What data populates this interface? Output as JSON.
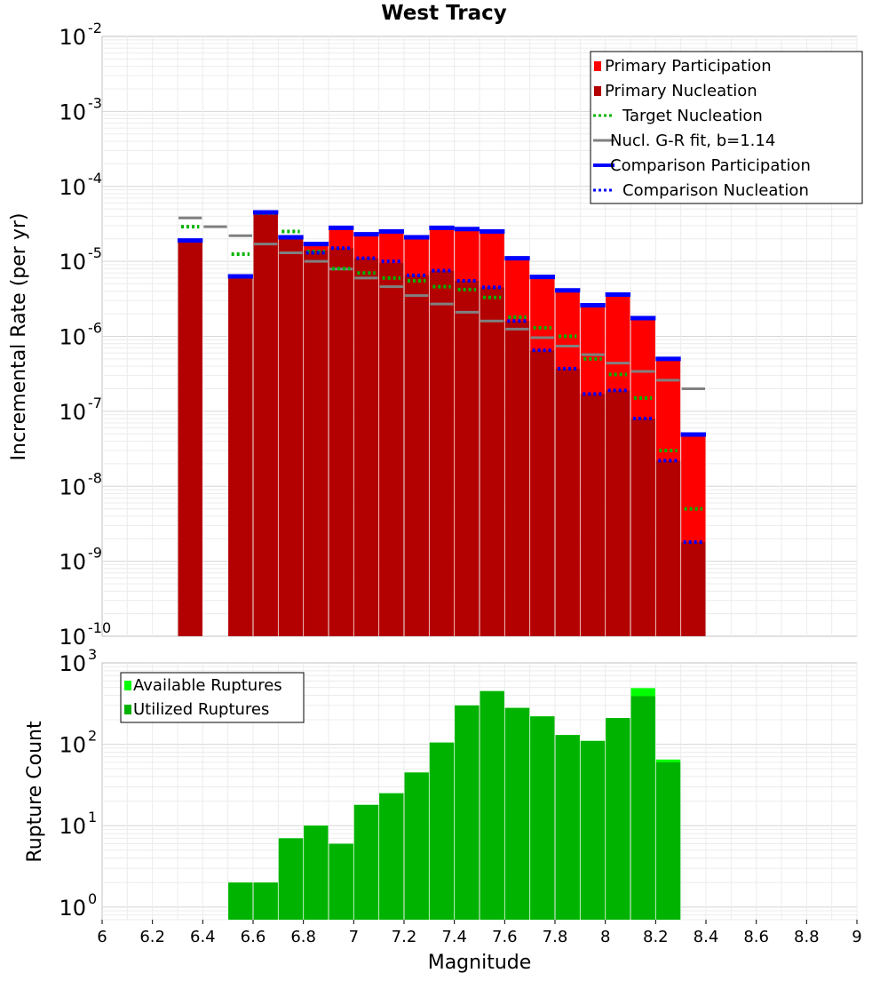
{
  "chart_data": [
    {
      "type": "bar",
      "title": "West Tracy",
      "xlabel": "",
      "ylabel": "Incremental Rate (per yr)",
      "yscale": "log",
      "xlim": [
        6,
        9
      ],
      "ylim": [
        1e-10,
        0.01
      ],
      "y_tick_labels": [
        {
          "base": "10",
          "exp": "-10"
        },
        {
          "base": "10",
          "exp": "-9"
        },
        {
          "base": "10",
          "exp": "-8"
        },
        {
          "base": "10",
          "exp": "-7"
        },
        {
          "base": "10",
          "exp": "-6"
        },
        {
          "base": "10",
          "exp": "-5"
        },
        {
          "base": "10",
          "exp": "-4"
        },
        {
          "base": "10",
          "exp": "-3"
        },
        {
          "base": "10",
          "exp": "-2"
        }
      ],
      "grid": true,
      "legend": "top-right",
      "legend_entries": [
        {
          "label": "Primary Participation",
          "style": "box",
          "color": "#ff0000"
        },
        {
          "label": "Primary Nucleation",
          "style": "box",
          "color": "#b30000"
        },
        {
          "label": "Target Nucleation",
          "style": "dotted",
          "color": "#00b300"
        },
        {
          "label": "Nucl. G-R fit, b=1.14",
          "style": "solid",
          "color": "#808080"
        },
        {
          "label": "Comparison Participation",
          "style": "solid",
          "color": "#0000ff"
        },
        {
          "label": "Comparison Nucleation",
          "style": "dotted",
          "color": "#0000ff"
        }
      ],
      "colors": {
        "participation": "#ff0000",
        "nucleation": "#b30000",
        "target": "#00b300",
        "gr_fit": "#808080",
        "comparison": "#0000ff"
      },
      "bin_width": 0.1,
      "x": [
        6.35,
        6.45,
        6.55,
        6.65,
        6.75,
        6.85,
        6.95,
        7.05,
        7.15,
        7.25,
        7.35,
        7.45,
        7.55,
        7.65,
        7.75,
        7.85,
        7.95,
        8.05,
        8.15,
        8.25,
        8.35
      ],
      "series": [
        {
          "name": "Primary Participation",
          "values": [
            1.8e-05,
            null,
            6e-06,
            4.2e-05,
            2e-05,
            1.6e-05,
            2.7e-05,
            2.2e-05,
            2.4e-05,
            2e-05,
            2.7e-05,
            2.6e-05,
            2.4e-05,
            1.05e-05,
            6e-06,
            3.9e-06,
            2.5e-06,
            3.4e-06,
            1.7e-06,
            4.8e-07,
            4.7e-08
          ]
        },
        {
          "name": "Primary Nucleation",
          "values": [
            1.8e-05,
            null,
            6e-06,
            4.2e-05,
            2e-05,
            1.4e-05,
            1.5e-05,
            1.1e-05,
            9.5e-06,
            6.5e-06,
            7.5e-06,
            5.5e-06,
            4.5e-06,
            1.6e-06,
            6.5e-07,
            3.7e-07,
            1.7e-07,
            1.9e-07,
            8e-08,
            2.2e-08,
            1.8e-09
          ]
        },
        {
          "name": "Target Nucleation",
          "values": [
            2.9e-05,
            null,
            1.25e-05,
            4.4e-05,
            2.5e-05,
            1.35e-05,
            8e-06,
            7e-06,
            6e-06,
            5.5e-06,
            4.6e-06,
            4.2e-06,
            3.3e-06,
            1.8e-06,
            1.3e-06,
            1e-06,
            5e-07,
            3.1e-07,
            1.5e-07,
            3e-08,
            5e-09
          ]
        },
        {
          "name": "Nucl. G-R fit, b=1.14",
          "values": [
            3.8e-05,
            2.9e-05,
            2.2e-05,
            1.7e-05,
            1.3e-05,
            1e-05,
            7.9e-06,
            6e-06,
            4.6e-06,
            3.5e-06,
            2.7e-06,
            2.1e-06,
            1.6e-06,
            1.25e-06,
            9.6e-07,
            7.4e-07,
            5.7e-07,
            4.4e-07,
            3.4e-07,
            2.6e-07,
            2e-07
          ]
        },
        {
          "name": "Comparison Participation",
          "values": [
            1.9e-05,
            null,
            6.3e-06,
            4.5e-05,
            2.1e-05,
            1.7e-05,
            2.8e-05,
            2.3e-05,
            2.5e-05,
            2.1e-05,
            2.8e-05,
            2.7e-05,
            2.5e-05,
            1.1e-05,
            6.2e-06,
            4.1e-06,
            2.6e-06,
            3.6e-06,
            1.75e-06,
            5e-07,
            4.9e-08
          ]
        },
        {
          "name": "Comparison Nucleation",
          "values": [
            null,
            null,
            null,
            null,
            null,
            1.3e-05,
            1.5e-05,
            1.1e-05,
            1e-05,
            6.5e-06,
            7.5e-06,
            5.5e-06,
            4.5e-06,
            1.6e-06,
            6.5e-07,
            3.7e-07,
            1.7e-07,
            1.9e-07,
            8e-08,
            2.2e-08,
            1.8e-09
          ]
        }
      ]
    },
    {
      "type": "bar",
      "title": "",
      "xlabel": "Magnitude",
      "ylabel": "Rupture Count",
      "yscale": "log",
      "xlim": [
        6,
        9
      ],
      "ylim": [
        0.7,
        1000
      ],
      "y_tick_labels": [
        {
          "base": "10",
          "exp": "0"
        },
        {
          "base": "10",
          "exp": "1"
        },
        {
          "base": "10",
          "exp": "2"
        },
        {
          "base": "10",
          "exp": "3"
        }
      ],
      "x_tick_labels": [
        "6",
        "6.2",
        "6.4",
        "6.6",
        "6.8",
        "7",
        "7.2",
        "7.4",
        "7.6",
        "7.8",
        "8",
        "8.2",
        "8.4",
        "8.6",
        "8.8",
        "9"
      ],
      "grid": true,
      "legend": "top-left",
      "legend_entries": [
        {
          "label": "Available Ruptures",
          "color": "#00ff00"
        },
        {
          "label": "Utilized Ruptures",
          "color": "#00b300"
        }
      ],
      "bin_width": 0.1,
      "x": [
        6.55,
        6.65,
        6.75,
        6.85,
        6.95,
        7.05,
        7.15,
        7.25,
        7.35,
        7.45,
        7.55,
        7.65,
        7.75,
        7.85,
        7.95,
        8.05,
        8.15,
        8.25
      ],
      "series": [
        {
          "name": "Available Ruptures",
          "values": [
            2,
            2,
            7,
            10,
            6,
            18,
            25,
            45,
            105,
            300,
            450,
            280,
            220,
            130,
            110,
            210,
            490,
            65
          ]
        },
        {
          "name": "Utilized Ruptures",
          "values": [
            2,
            2,
            7,
            10,
            6,
            18,
            25,
            45,
            105,
            300,
            450,
            280,
            220,
            130,
            110,
            210,
            390,
            60
          ]
        }
      ]
    }
  ]
}
